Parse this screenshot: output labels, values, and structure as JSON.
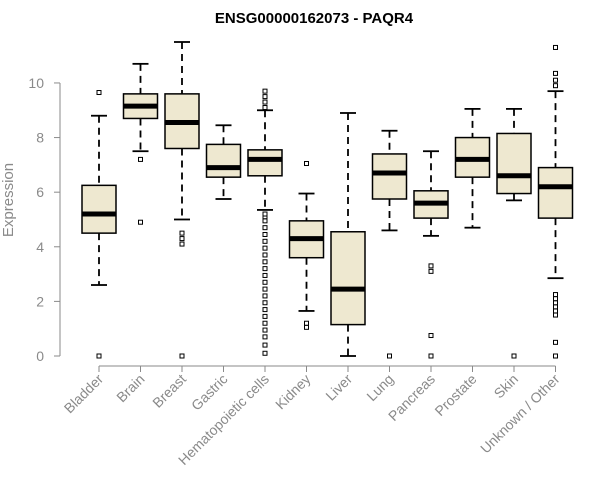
{
  "chart_data": {
    "type": "boxplot",
    "title": "ENSG00000162073 - PAQR4",
    "xlabel": "",
    "ylabel": "Expression",
    "ylim": [
      0,
      11.5
    ],
    "yticks": [
      0,
      2,
      4,
      6,
      8,
      10
    ],
    "box_fill": "#EEE8D0",
    "categories": [
      "Bladder",
      "Brain",
      "Breast",
      "Gastric",
      "Hematopoietic cells",
      "Kidney",
      "Liver",
      "Lung",
      "Pancreas",
      "Prostate",
      "Skin",
      "Unknown / Other"
    ],
    "boxes": [
      {
        "q1": 4.5,
        "median": 5.2,
        "q3": 6.25,
        "whisker_low": 2.6,
        "whisker_high": 8.8,
        "outliers": [
          0,
          9.65
        ]
      },
      {
        "q1": 8.7,
        "median": 9.15,
        "q3": 9.6,
        "whisker_low": 7.5,
        "whisker_high": 10.7,
        "outliers": [
          4.9,
          7.2
        ]
      },
      {
        "q1": 7.6,
        "median": 8.55,
        "q3": 9.6,
        "whisker_low": 5.0,
        "whisker_high": 11.5,
        "outliers": [
          0,
          4.1,
          4.3,
          4.5
        ]
      },
      {
        "q1": 6.55,
        "median": 6.9,
        "q3": 7.75,
        "whisker_low": 5.75,
        "whisker_high": 8.45,
        "outliers": []
      },
      {
        "q1": 6.6,
        "median": 7.2,
        "q3": 7.55,
        "whisker_low": 5.35,
        "whisker_high": 9.0,
        "outliers": [
          0.1,
          0.4,
          0.7,
          0.95,
          1.2,
          1.45,
          1.7,
          1.95,
          2.2,
          2.45,
          2.7,
          2.95,
          3.2,
          3.45,
          3.7,
          3.95,
          4.2,
          4.45,
          4.7,
          4.95,
          5.1,
          5.2,
          9.1,
          9.3,
          9.5,
          9.7
        ]
      },
      {
        "q1": 3.6,
        "median": 4.3,
        "q3": 4.95,
        "whisker_low": 1.65,
        "whisker_high": 5.95,
        "outliers": [
          1.05,
          1.2,
          7.05
        ]
      },
      {
        "q1": 1.15,
        "median": 2.45,
        "q3": 4.55,
        "whisker_low": 0,
        "whisker_high": 8.9,
        "outliers": []
      },
      {
        "q1": 5.75,
        "median": 6.7,
        "q3": 7.4,
        "whisker_low": 4.6,
        "whisker_high": 8.25,
        "outliers": [
          0
        ]
      },
      {
        "q1": 5.05,
        "median": 5.6,
        "q3": 6.05,
        "whisker_low": 4.4,
        "whisker_high": 7.5,
        "outliers": [
          0,
          0.75,
          3.1,
          3.3
        ]
      },
      {
        "q1": 6.55,
        "median": 7.2,
        "q3": 8.0,
        "whisker_low": 4.7,
        "whisker_high": 9.05,
        "outliers": []
      },
      {
        "q1": 5.95,
        "median": 6.6,
        "q3": 8.15,
        "whisker_low": 5.7,
        "whisker_high": 9.05,
        "outliers": [
          0
        ]
      },
      {
        "q1": 5.05,
        "median": 6.2,
        "q3": 6.9,
        "whisker_low": 2.85,
        "whisker_high": 9.7,
        "outliers": [
          0,
          0.5,
          1.5,
          1.65,
          1.8,
          1.95,
          2.1,
          2.25,
          9.9,
          10.1,
          10.35,
          11.3
        ]
      }
    ]
  }
}
